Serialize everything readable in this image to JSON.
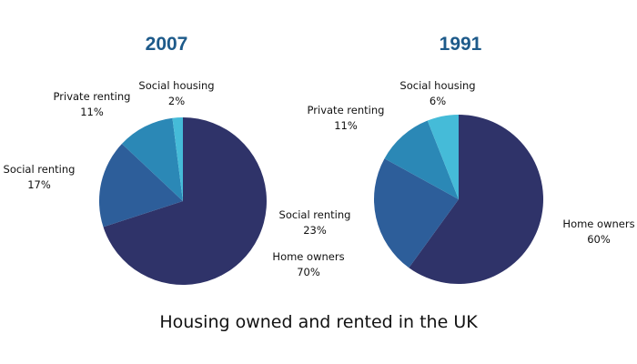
{
  "colors": {
    "title": "#1d5a8a",
    "text": "#111111",
    "home_owners": "#2f3369",
    "social_renting": "#2d5e9a",
    "private_renting": "#2b88b6",
    "social_housing": "#45bbd8"
  },
  "chart_data": [
    {
      "type": "pie",
      "title": "2007",
      "slices": [
        {
          "label": "Home owners",
          "value": 70,
          "value_label": "70%",
          "color_key": "home_owners"
        },
        {
          "label": "Social renting",
          "value": 17,
          "value_label": "17%",
          "color_key": "social_renting"
        },
        {
          "label": "Private renting",
          "value": 11,
          "value_label": "11%",
          "color_key": "private_renting"
        },
        {
          "label": "Social housing",
          "value": 2,
          "value_label": "2%",
          "color_key": "social_housing"
        }
      ]
    },
    {
      "type": "pie",
      "title": "1991",
      "slices": [
        {
          "label": "Home owners",
          "value": 60,
          "value_label": "60%",
          "color_key": "home_owners"
        },
        {
          "label": "Social renting",
          "value": 23,
          "value_label": "23%",
          "color_key": "social_renting"
        },
        {
          "label": "Private renting",
          "value": 11,
          "value_label": "11%",
          "color_key": "private_renting"
        },
        {
          "label": "Social housing",
          "value": 6,
          "value_label": "6%",
          "color_key": "social_housing"
        }
      ]
    }
  ],
  "main_title": "Housing owned and rented in the UK"
}
